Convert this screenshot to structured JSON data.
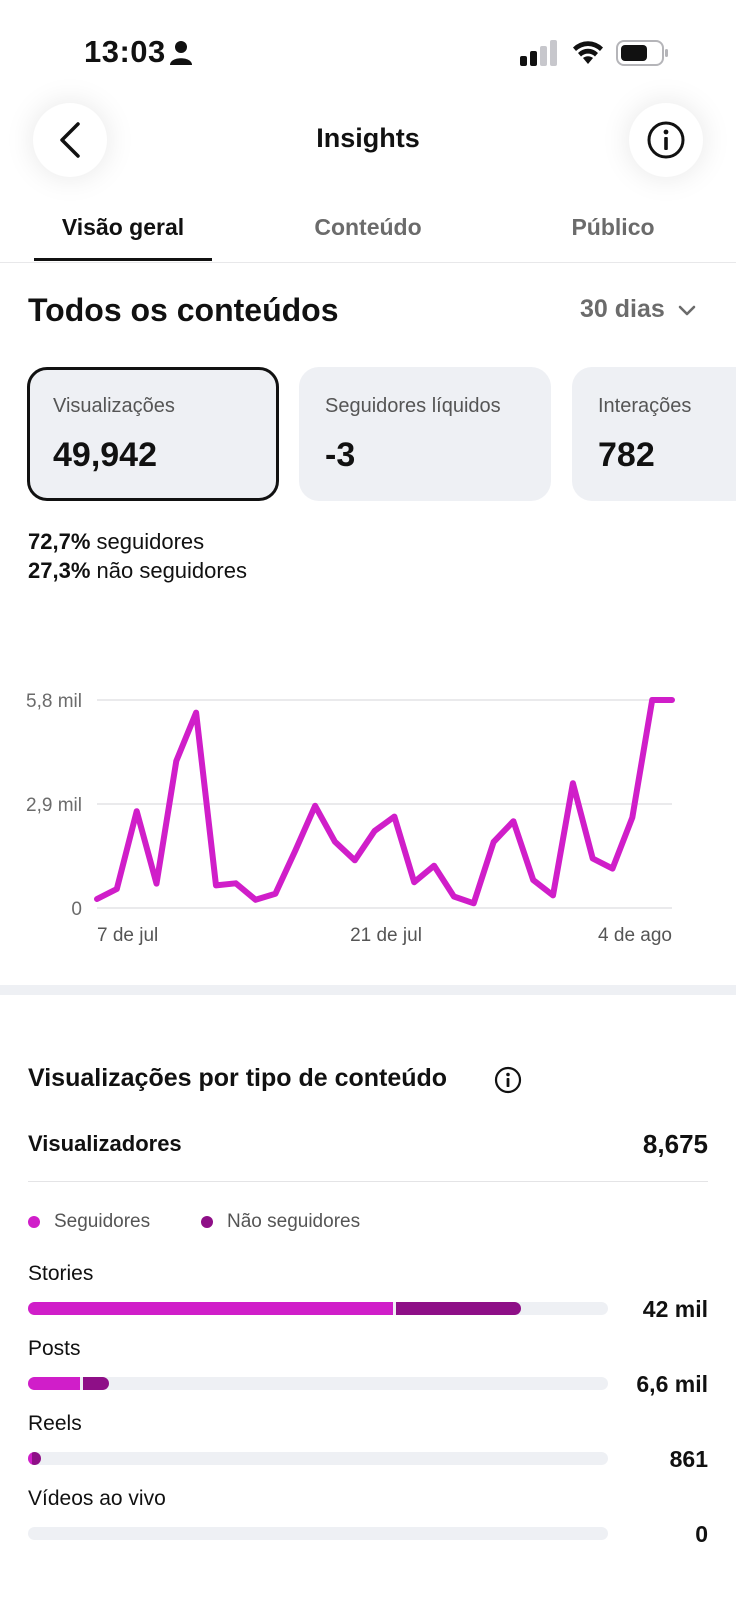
{
  "status_bar": {
    "time": "13:03"
  },
  "header": {
    "title": "Insights"
  },
  "tabs": [
    {
      "label": "Visão geral",
      "active": true
    },
    {
      "label": "Conteúdo",
      "active": false
    },
    {
      "label": "Público",
      "active": false
    }
  ],
  "overview": {
    "heading": "Todos os conteúdos",
    "period": "30 dias",
    "cards": [
      {
        "label": "Visualizações",
        "value": "49,942",
        "selected": true
      },
      {
        "label": "Seguidores líquidos",
        "value": "-3",
        "selected": false
      },
      {
        "label": "Interações",
        "value": "782",
        "selected": false
      }
    ],
    "split": [
      {
        "percent": "72,7%",
        "label": "seguidores"
      },
      {
        "percent": "27,3%",
        "label": "não seguidores"
      }
    ]
  },
  "chart_data": {
    "type": "line",
    "x": [
      "6 de jul",
      "7 de jul",
      "8 de jul",
      "9 de jul",
      "10 de jul",
      "11 de jul",
      "12 de jul",
      "13 de jul",
      "14 de jul",
      "15 de jul",
      "16 de jul",
      "17 de jul",
      "18 de jul",
      "19 de jul",
      "20 de jul",
      "21 de jul",
      "22 de jul",
      "23 de jul",
      "24 de jul",
      "25 de jul",
      "26 de jul",
      "27 de jul",
      "28 de jul",
      "29 de jul",
      "30 de jul",
      "31 de jul",
      "1 de ago",
      "2 de ago",
      "3 de ago",
      "4 de ago"
    ],
    "y": [
      250,
      530,
      2700,
      680,
      4100,
      5450,
      630,
      690,
      230,
      400,
      1600,
      2850,
      1850,
      1330,
      2150,
      2550,
      720,
      1180,
      320,
      130,
      1840,
      2420,
      780,
      350,
      3480,
      1380,
      1100,
      2520,
      5800,
      5800
    ],
    "x_tick_labels": [
      "7 de jul",
      "21 de jul",
      "4 de ago"
    ],
    "y_tick_labels": [
      "0",
      "2,9 mil",
      "5,8 mil"
    ],
    "ylim": [
      0,
      5800
    ],
    "grid": true,
    "line_color": "#d01ec9"
  },
  "by_type": {
    "heading": "Visualizações por tipo de conteúdo",
    "viewers_label": "Visualizadores",
    "viewers_value": "8,675",
    "legend": [
      {
        "label": "Seguidores",
        "color": "#d01ec9"
      },
      {
        "label": "Não seguidores",
        "color": "#8e0f87"
      }
    ],
    "rows": [
      {
        "label": "Stories",
        "value": "42 mil",
        "followers_fraction": 0.63,
        "non_followers_fraction": 0.215
      },
      {
        "label": "Posts",
        "value": "6,6 mil",
        "followers_fraction": 0.09,
        "non_followers_fraction": 0.045
      },
      {
        "label": "Reels",
        "value": "861",
        "followers_fraction": 0.006,
        "non_followers_fraction": 0.015
      },
      {
        "label": "Vídeos ao vivo",
        "value": "0",
        "followers_fraction": 0,
        "non_followers_fraction": 0
      }
    ]
  }
}
